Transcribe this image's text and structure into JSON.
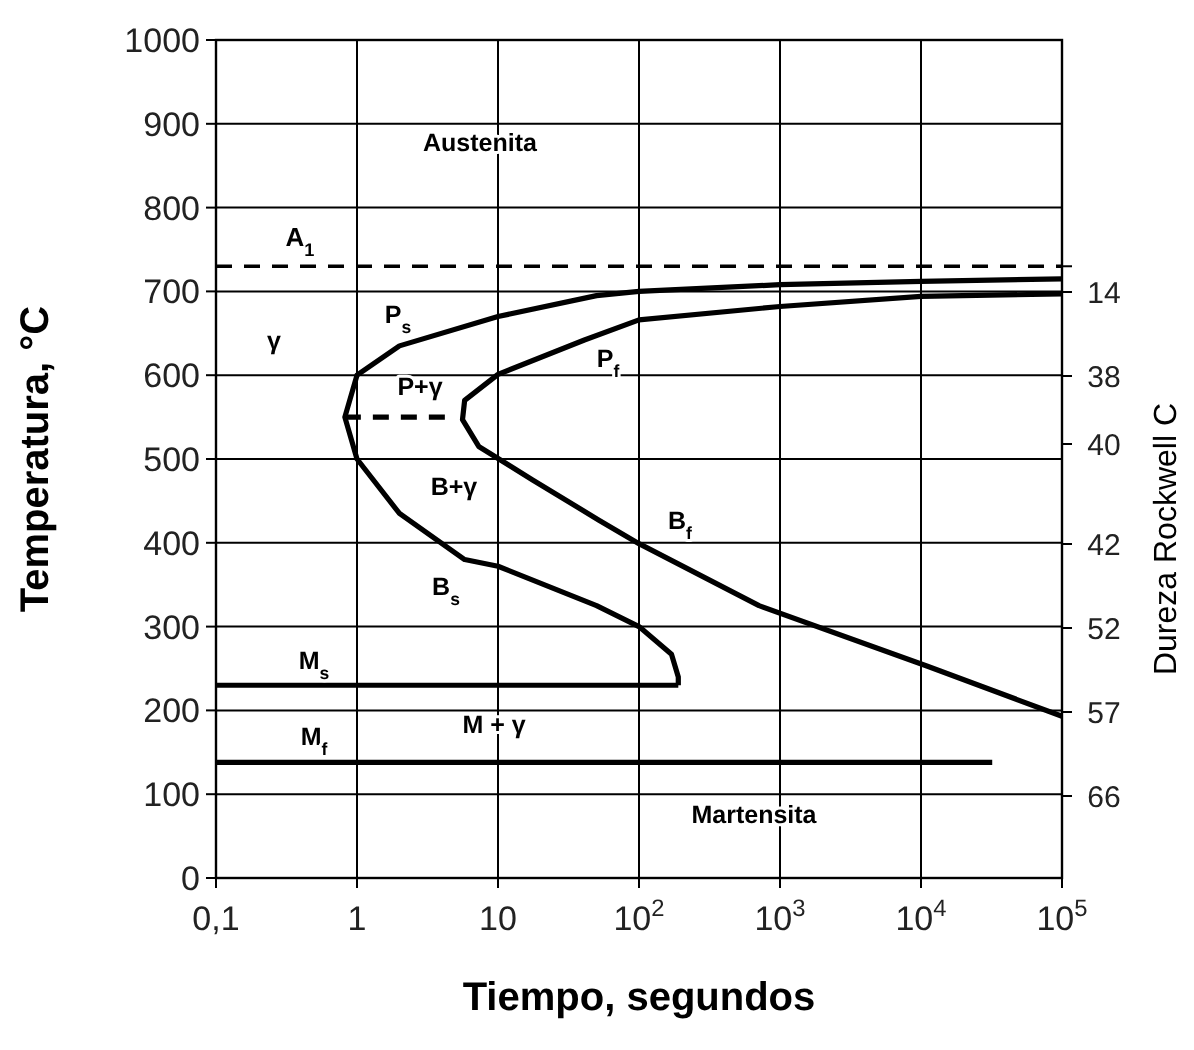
{
  "chart_data": {
    "type": "line",
    "xlabel": "Tiempo, segundos",
    "ylabel": "Temperatura, °C",
    "y2label": "Dureza Rockwell C",
    "log": "x",
    "grid": true,
    "xlim": [
      0.1,
      100000
    ],
    "xticks": [
      {
        "value": 0.1,
        "label": "0,1"
      },
      1,
      10,
      {
        "value": 100,
        "label": "10$^{2}$"
      },
      {
        "value": 1000,
        "label": "10$^{3}$"
      },
      {
        "value": 10000,
        "label": "10$^{4}$"
      },
      {
        "value": 100000,
        "label": "10$^{5}$"
      }
    ],
    "ylim": [
      0,
      1000
    ],
    "yticks": [
      0,
      100,
      200,
      300,
      400,
      500,
      600,
      700,
      800,
      900,
      1000
    ],
    "series": [
      {
        "color": "#000000",
        "x": [
          100000,
          10000,
          1000,
          100,
          50,
          10,
          2,
          1,
          0.82,
          1,
          2,
          5.8,
          10,
          50,
          100,
          170,
          190,
          190
        ],
        "values": [
          715,
          712,
          708,
          700,
          695,
          670,
          635,
          600,
          550,
          500,
          435,
          380,
          372,
          325,
          300,
          267,
          240,
          230
        ]
      },
      {
        "color": "#000000",
        "x": [
          100000,
          10000,
          1000,
          100,
          41,
          10,
          5.8,
          5.6,
          7.3,
          17.6,
          52,
          100,
          710,
          11000,
          100000
        ],
        "values": [
          697,
          694,
          682,
          666,
          642,
          601,
          570,
          547,
          515,
          475,
          427,
          399,
          325,
          253,
          193
        ]
      },
      {
        "color": "#000000",
        "x": [
          0.1,
          190
        ],
        "values": [
          230,
          230
        ]
      },
      {
        "color": "#000000",
        "x": [
          0.1,
          32000
        ],
        "values": [
          138,
          138
        ]
      },
      {
        "color": "#000000",
        "line_style": "dashed",
        "x": [
          0.82,
          4.8
        ],
        "values": [
          550,
          550
        ]
      }
    ],
    "ref_lines": [
      {
        "axis": "y",
        "value": 730,
        "label": "A$_{1}$",
        "line_style": "dashed",
        "color": "#000000"
      }
    ],
    "annotations": [
      "Austenita",
      "γ",
      "P$_{s}$",
      "P+γ",
      "P$_{f}$",
      "B+γ",
      "B$_{s}$",
      "B$_{f}$",
      "M$_{s}$",
      "M$_{f}$",
      "M + γ",
      "Martensita",
      "14",
      "38",
      "40",
      "42",
      "52",
      "57",
      "66"
    ]
  }
}
